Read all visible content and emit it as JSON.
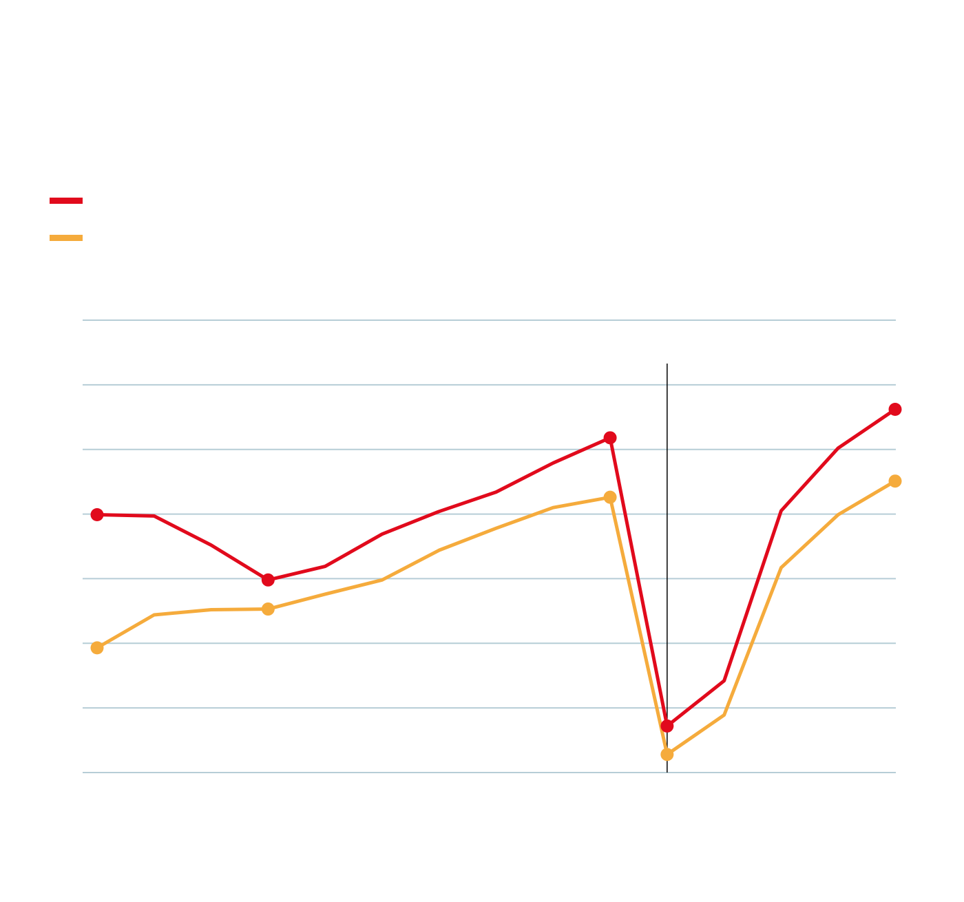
{
  "colors": {
    "series_red": "#e10a1c",
    "series_orange": "#f5ab3c",
    "gridline": "#b6cdd6",
    "event_line": "#000000"
  },
  "chart_data": {
    "type": "line",
    "title": "",
    "xlabel": "",
    "ylabel": "",
    "x": [
      0,
      1,
      2,
      3,
      4,
      5,
      6,
      7,
      8,
      9,
      10,
      11,
      12,
      13,
      14
    ],
    "ylim": [
      0,
      7
    ],
    "grid": true,
    "gridline_values": [
      0,
      1,
      2,
      3,
      4,
      5,
      6,
      7
    ],
    "event_marker_x": 10,
    "legend_position": "top-left",
    "series": [
      {
        "color": "#e10a1c",
        "values": [
          3.99,
          3.97,
          3.52,
          2.98,
          3.19,
          3.69,
          4.04,
          4.34,
          4.79,
          5.18,
          0.72,
          1.42,
          4.05,
          5.02,
          5.62
        ],
        "highlighted_points": [
          0,
          3,
          9,
          10,
          14
        ]
      },
      {
        "color": "#f5ab3c",
        "values": [
          1.93,
          2.44,
          2.52,
          2.53,
          2.76,
          2.98,
          3.44,
          3.78,
          4.1,
          4.26,
          0.28,
          0.89,
          3.17,
          3.99,
          4.51
        ],
        "highlighted_points": [
          0,
          3,
          9,
          10,
          14
        ]
      }
    ]
  }
}
